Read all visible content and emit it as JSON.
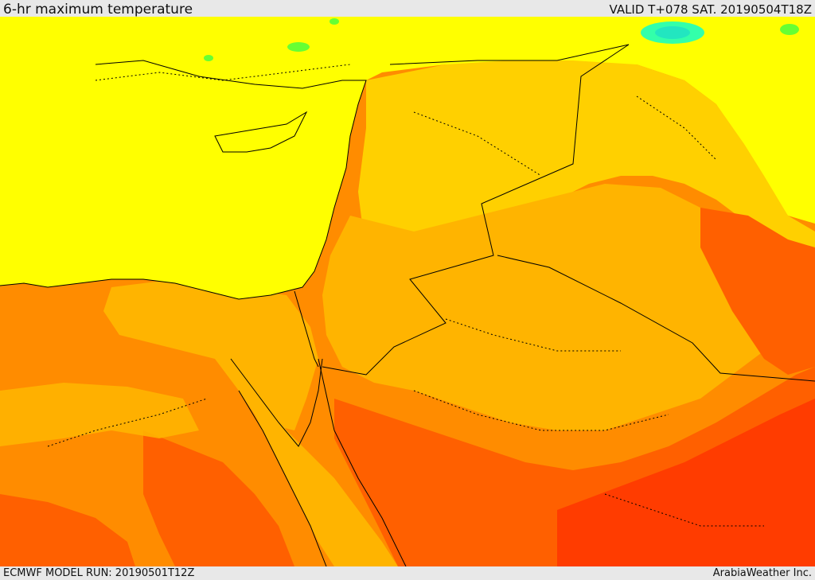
{
  "header": {
    "title": "6-hr maximum temperature",
    "valid": "VALID T+078 SAT. 20190504T18Z"
  },
  "footer": {
    "model_run": "ECMWF MODEL RUN: 20190501T12Z",
    "credit": "ArabiaWeather Inc."
  },
  "colors": {
    "sea_yellow": "#ffff00",
    "light_orange": "#ffd000",
    "orange_yellow": "#ffb400",
    "orange": "#ff8c00",
    "dark_orange": "#ff6000",
    "red_orange": "#ff3c00",
    "red": "#ff2200",
    "green": "#66ff33",
    "cyan": "#33ffaa",
    "borders": "#000000"
  }
}
